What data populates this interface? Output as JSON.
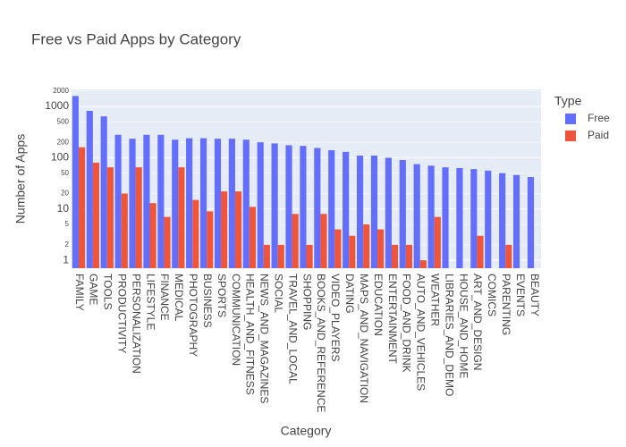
{
  "chart_data": {
    "type": "bar",
    "title": "Free vs Paid Apps by Category",
    "x_label": "Category",
    "y_label": "Number of Apps",
    "legend_title": "Type",
    "legend_position": "right",
    "log_y": true,
    "grid": true,
    "categories": [
      "FAMILY",
      "GAME",
      "TOOLS",
      "PRODUCTIVITY",
      "PERSONALIZATION",
      "LIFESTYLE",
      "FINANCE",
      "MEDICAL",
      "PHOTOGRAPHY",
      "BUSINESS",
      "SPORTS",
      "COMMUNICATION",
      "HEALTH_AND_FITNESS",
      "NEWS_AND_MAGAZINES",
      "SOCIAL",
      "TRAVEL_AND_LOCAL",
      "SHOPPING",
      "BOOKS_AND_REFERENCE",
      "VIDEO_PLAYERS",
      "DATING",
      "MAPS_AND_NAVIGATION",
      "EDUCATION",
      "ENTERTAINMENT",
      "FOOD_AND_DRINK",
      "AUTO_AND_VEHICLES",
      "WEATHER",
      "LIBRARIES_AND_DEMO",
      "HOUSE_AND_HOME",
      "ART_AND_DESIGN",
      "COMICS",
      "PARENTING",
      "EVENTS",
      "BEAUTY"
    ],
    "series": [
      {
        "name": "Free",
        "color": "#636efa",
        "values": [
          1600,
          820,
          640,
          280,
          235,
          280,
          280,
          225,
          240,
          240,
          235,
          235,
          225,
          200,
          190,
          175,
          170,
          155,
          140,
          130,
          110,
          110,
          100,
          90,
          75,
          70,
          65,
          63,
          60,
          56,
          50,
          46,
          42
        ]
      },
      {
        "name": "Paid",
        "color": "#ef553b",
        "values": [
          160,
          80,
          65,
          20,
          65,
          13,
          7,
          65,
          15,
          9,
          22,
          22,
          11,
          2,
          2,
          8,
          2,
          8,
          4,
          3,
          5,
          4,
          2,
          2,
          1,
          7,
          null,
          null,
          3,
          null,
          2,
          null,
          null
        ]
      }
    ],
    "ylim": [
      0.7,
      2150
    ],
    "yticks": [
      1,
      2,
      5,
      10,
      20,
      50,
      100,
      200,
      500,
      1000,
      2000
    ]
  }
}
